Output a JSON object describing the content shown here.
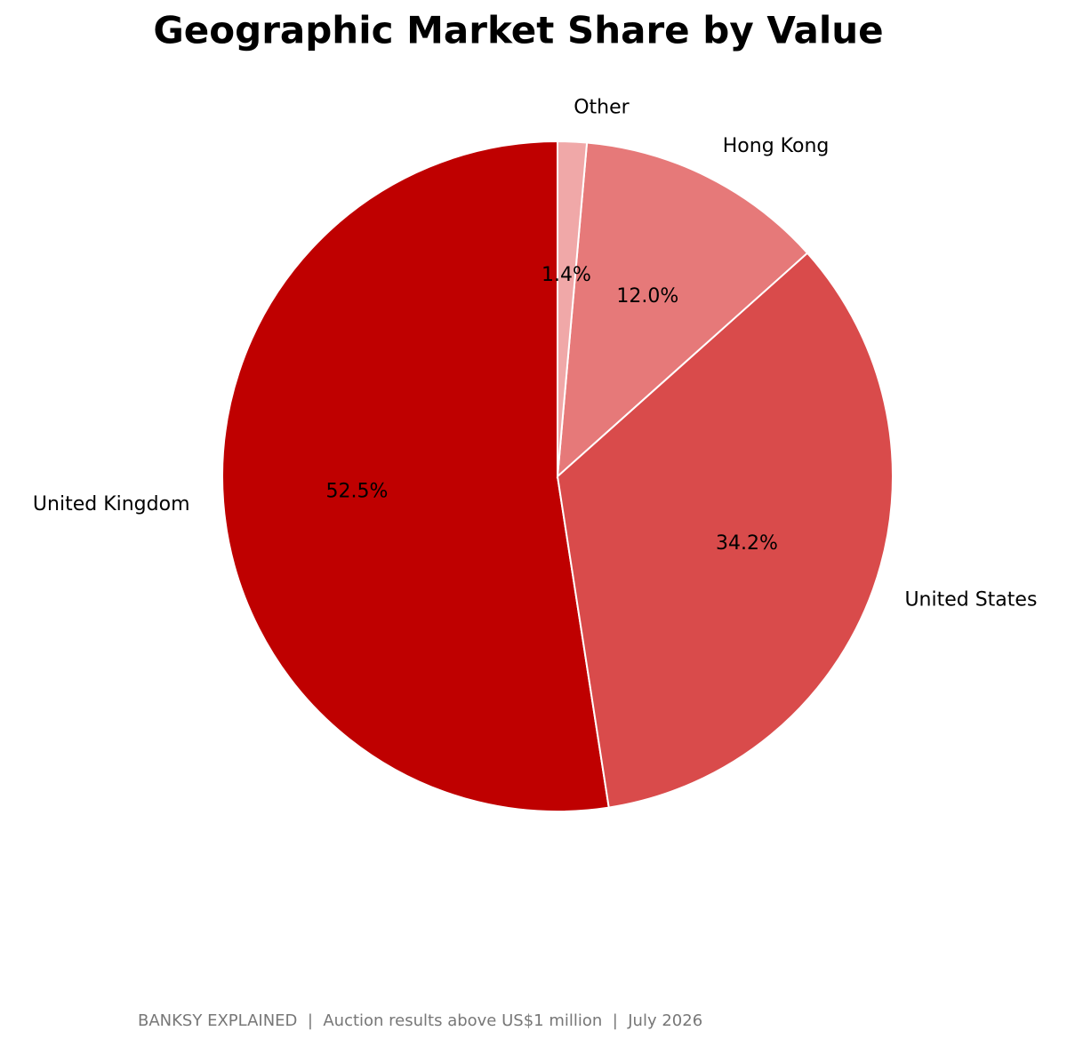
{
  "chart_data": {
    "type": "pie",
    "title": "Geographic Market Share by Value",
    "categories": [
      "United Kingdom",
      "United States",
      "Hong Kong",
      "Other"
    ],
    "values": [
      52.5,
      34.2,
      12.0,
      1.4
    ],
    "value_labels": [
      "52.5%",
      "34.2%",
      "12.0%",
      "1.4%"
    ],
    "colors": [
      "#bf0000",
      "#d94b4b",
      "#e67979",
      "#f0a8a8"
    ],
    "footer": "BANKSY EXPLAINED  |  Auction results above US$1 million  |  July 2026"
  }
}
